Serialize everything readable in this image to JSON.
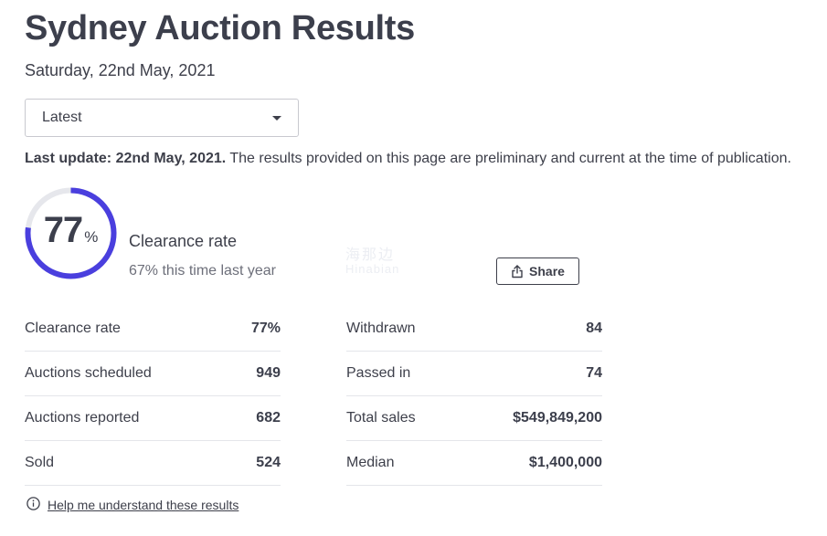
{
  "page": {
    "title": "Sydney Auction Results",
    "date": "Saturday, 22nd May, 2021"
  },
  "filter": {
    "selected": "Latest"
  },
  "update": {
    "bold": "Last update: 22nd May, 2021.",
    "text": " The results provided on this page are preliminary and current at the time of publication."
  },
  "clearance": {
    "value": "77",
    "value_fraction": 0.77,
    "percent_sign": "%",
    "label": "Clearance rate",
    "last_year": "67% this time last year",
    "accent_color": "#4a3fde",
    "track_color": "#e6e7ec"
  },
  "watermark": {
    "cn": "海那边",
    "en": "Hinabian"
  },
  "share": {
    "label": "Share",
    "icon": "share-icon"
  },
  "stats_left": [
    {
      "label": "Clearance rate",
      "value": "77%"
    },
    {
      "label": "Auctions scheduled",
      "value": "949"
    },
    {
      "label": "Auctions reported",
      "value": "682"
    },
    {
      "label": "Sold",
      "value": "524"
    }
  ],
  "stats_right": [
    {
      "label": "Withdrawn",
      "value": "84"
    },
    {
      "label": "Passed in",
      "value": "74"
    },
    {
      "label": "Total sales",
      "value": "$549,849,200"
    },
    {
      "label": "Median",
      "value": "$1,400,000"
    }
  ],
  "help": {
    "label": "Help me understand these results",
    "icon": "info-icon"
  }
}
